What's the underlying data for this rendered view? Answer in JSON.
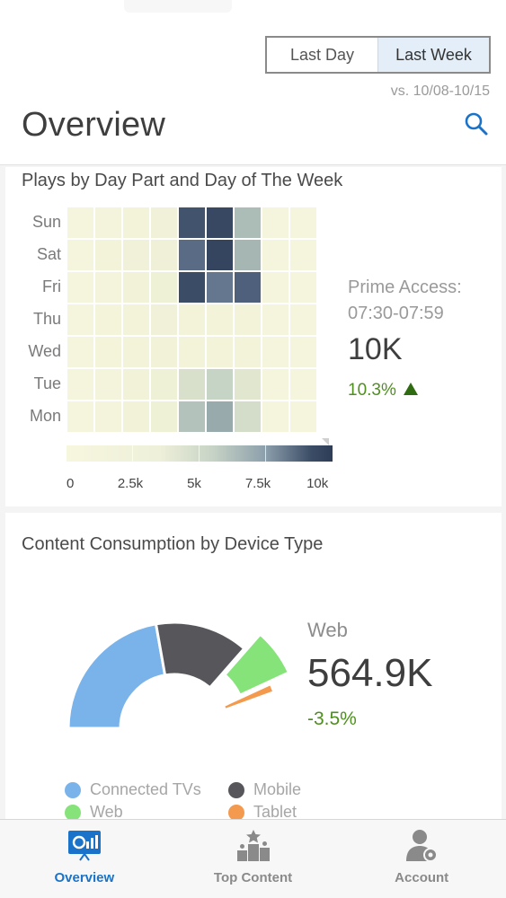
{
  "header": {
    "range_options": [
      {
        "label": "Last Day",
        "active": false
      },
      {
        "label": "Last Week",
        "active": true
      }
    ],
    "comparison": "vs. 10/08-10/15",
    "title": "Overview",
    "search_icon": "search-icon"
  },
  "heatmap_card": {
    "title": "Plays by Day Part and Day of The Week",
    "chart_data": {
      "type": "heatmap",
      "title": "Plays by Day Part and Day of The Week",
      "rows": [
        "Sun",
        "Sat",
        "Fri",
        "Thu",
        "Wed",
        "Tue",
        "Mon"
      ],
      "columns": 9,
      "values": [
        [
          0.6,
          0.9,
          1.3,
          1.6,
          9.2,
          9.8,
          5.2,
          0.5,
          0.4
        ],
        [
          0.6,
          1.0,
          1.6,
          1.8,
          8.2,
          10.0,
          5.4,
          0.6,
          0.4
        ],
        [
          0.6,
          0.9,
          1.5,
          1.7,
          9.6,
          7.8,
          8.6,
          0.6,
          0.4
        ],
        [
          0.5,
          0.8,
          1.2,
          1.6,
          1.2,
          1.2,
          1.0,
          0.5,
          0.4
        ],
        [
          0.5,
          0.8,
          1.2,
          1.4,
          1.1,
          1.2,
          1.0,
          0.5,
          0.4
        ],
        [
          0.5,
          0.9,
          1.5,
          1.7,
          3.6,
          4.4,
          3.2,
          0.5,
          0.4
        ],
        [
          0.5,
          0.9,
          1.5,
          1.7,
          5.0,
          5.8,
          3.8,
          0.5,
          0.4
        ]
      ],
      "scale_labels": [
        "0",
        "2.5k",
        "5k",
        "7.5k",
        "10k"
      ],
      "scale_range": [
        0,
        10
      ],
      "scale_colors": [
        "#f7f6df",
        "#2e3d57"
      ]
    },
    "highlight": {
      "label_line1": "Prime Access:",
      "label_line2": "07:30-07:59",
      "value": "10K",
      "change": "10.3%",
      "trend_icon": "triangle-up-icon",
      "trend_color": "#2f6b10"
    }
  },
  "device_card": {
    "title": "Content Consumption by Device Type",
    "chart_data": {
      "type": "pie",
      "variant": "exploded semi-donut",
      "slices": [
        {
          "name": "Connected TVs",
          "value": 50,
          "color": "#7ab3ea"
        },
        {
          "name": "Mobile",
          "value": 32,
          "color": "#57565b"
        },
        {
          "name": "Web",
          "value": 15,
          "color": "#86e37a",
          "selected": true
        },
        {
          "name": "Tablet",
          "value": 3,
          "color": "#f39a4e"
        }
      ]
    },
    "selected": {
      "name": "Web",
      "value": "564.9K",
      "change": "-3.5%"
    },
    "legend": [
      {
        "label": "Connected TVs",
        "color": "#7ab3ea"
      },
      {
        "label": "Mobile",
        "color": "#57565b"
      },
      {
        "label": "Web",
        "color": "#86e37a"
      },
      {
        "label": "Tablet",
        "color": "#f39a4e"
      }
    ]
  },
  "tabbar": {
    "tabs": [
      {
        "label": "Overview",
        "icon": "dashboard-icon",
        "active": true
      },
      {
        "label": "Top Content",
        "icon": "podium-icon",
        "active": false
      },
      {
        "label": "Account",
        "icon": "user-gear-icon",
        "active": false
      }
    ],
    "accent": "#1a73c8"
  }
}
